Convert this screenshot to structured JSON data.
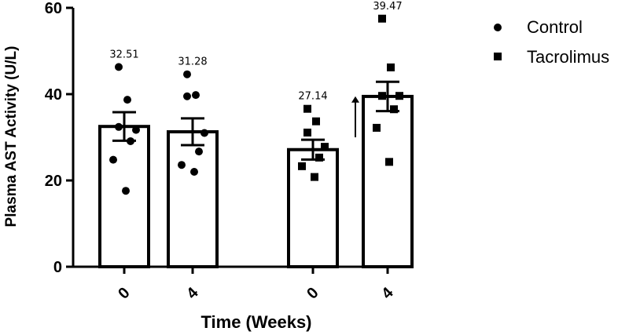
{
  "chart_data": {
    "type": "bar",
    "xlabel": "Time (Weeks)",
    "ylabel": "Plasma AST Activity (U/L)",
    "ylim": [
      0,
      60
    ],
    "yticks": [
      0,
      20,
      40,
      60
    ],
    "legend_position": "top-right",
    "legend": [
      {
        "name": "Control",
        "marker": "circle"
      },
      {
        "name": "Tacrolimus",
        "marker": "square"
      }
    ],
    "bars": [
      {
        "group": "Control",
        "time": "0",
        "mean": 32.51,
        "mean_label": "32.51",
        "sem": 3.3,
        "points": [
          46.3,
          38.7,
          32.4,
          31.7,
          29.1,
          24.8,
          17.6
        ]
      },
      {
        "group": "Control",
        "time": "4",
        "mean": 31.28,
        "mean_label": "31.28",
        "sem": 3.1,
        "points": [
          44.6,
          39.8,
          39.5,
          31.0,
          26.7,
          23.6,
          22.0
        ]
      },
      {
        "group": "Tacrolimus",
        "time": "0",
        "mean": 27.14,
        "mean_label": "27.14",
        "sem": 2.3,
        "points": [
          36.6,
          33.7,
          31.1,
          27.8,
          25.3,
          23.3,
          20.8
        ]
      },
      {
        "group": "Tacrolimus",
        "time": "4",
        "mean": 39.47,
        "mean_label": "39.47",
        "sem": 3.4,
        "points": [
          57.5,
          46.2,
          39.6,
          39.6,
          36.5,
          32.2,
          24.3
        ]
      }
    ],
    "annotations": [
      {
        "type": "arrow",
        "direction": "up",
        "near_bar": 3
      }
    ]
  }
}
